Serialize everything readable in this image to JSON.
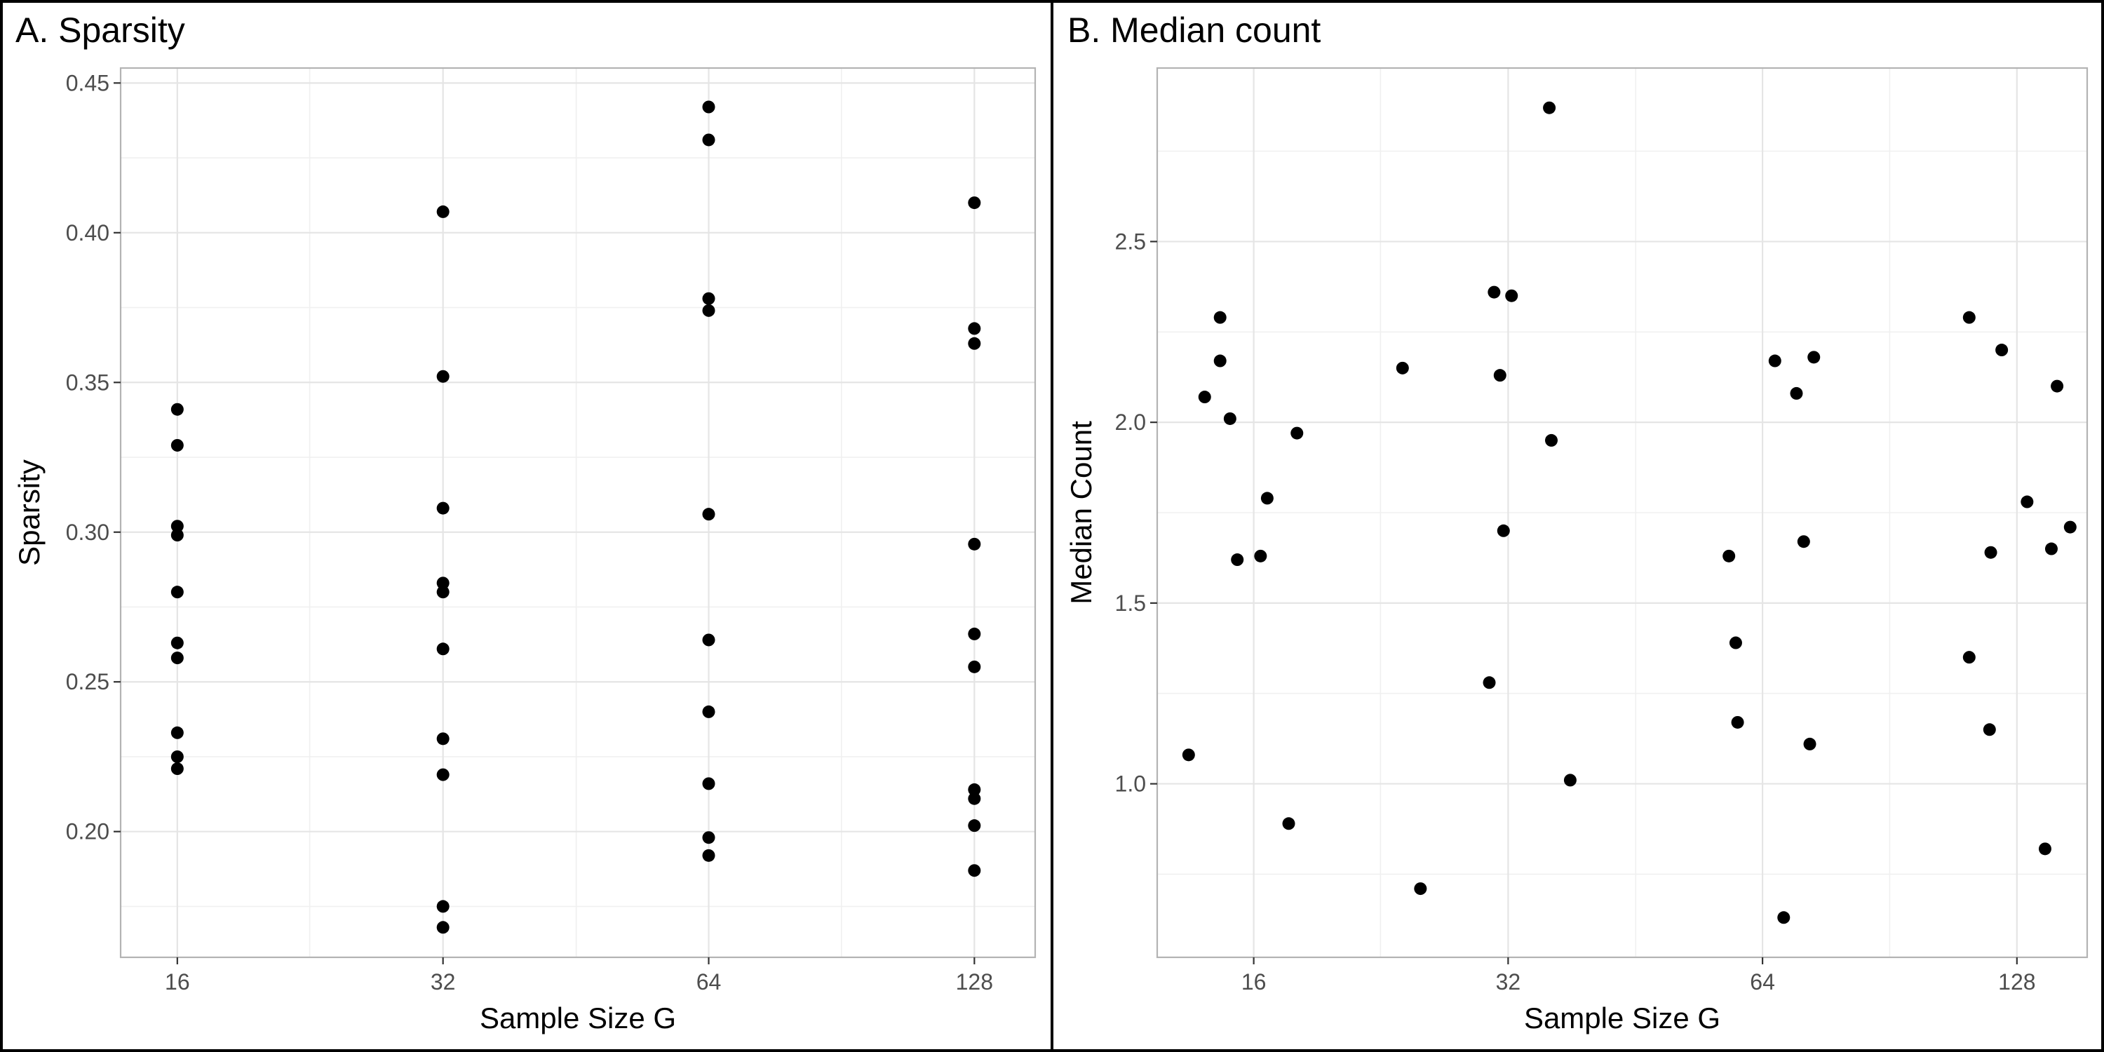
{
  "chart_data": [
    {
      "type": "scatter",
      "title": "A. Sparsity",
      "xlabel": "Sample Size G",
      "ylabel": "Sparsity",
      "xscale": "log2",
      "xlim": [
        13.8,
        150
      ],
      "ylim": [
        0.158,
        0.455
      ],
      "xticks": [
        16,
        32,
        64,
        128
      ],
      "xtick_labels": [
        "16",
        "32",
        "64",
        "128"
      ],
      "xminor": [
        22.6,
        45.3,
        90.5
      ],
      "yticks": [
        0.2,
        0.25,
        0.3,
        0.35,
        0.4,
        0.45
      ],
      "ytick_labels": [
        "0.20",
        "0.25",
        "0.30",
        "0.35",
        "0.40",
        "0.45"
      ],
      "yminor": [
        0.175,
        0.225,
        0.275,
        0.325,
        0.375,
        0.425
      ],
      "grid": true,
      "points": [
        {
          "x": 16,
          "y": 0.341
        },
        {
          "x": 16,
          "y": 0.329
        },
        {
          "x": 16,
          "y": 0.302
        },
        {
          "x": 16,
          "y": 0.299
        },
        {
          "x": 16,
          "y": 0.28
        },
        {
          "x": 16,
          "y": 0.263
        },
        {
          "x": 16,
          "y": 0.258
        },
        {
          "x": 16,
          "y": 0.233
        },
        {
          "x": 16,
          "y": 0.225
        },
        {
          "x": 16,
          "y": 0.221
        },
        {
          "x": 32,
          "y": 0.407
        },
        {
          "x": 32,
          "y": 0.352
        },
        {
          "x": 32,
          "y": 0.308
        },
        {
          "x": 32,
          "y": 0.283
        },
        {
          "x": 32,
          "y": 0.28
        },
        {
          "x": 32,
          "y": 0.261
        },
        {
          "x": 32,
          "y": 0.231
        },
        {
          "x": 32,
          "y": 0.219
        },
        {
          "x": 32,
          "y": 0.175
        },
        {
          "x": 32,
          "y": 0.168
        },
        {
          "x": 64,
          "y": 0.442
        },
        {
          "x": 64,
          "y": 0.431
        },
        {
          "x": 64,
          "y": 0.378
        },
        {
          "x": 64,
          "y": 0.374
        },
        {
          "x": 64,
          "y": 0.306
        },
        {
          "x": 64,
          "y": 0.264
        },
        {
          "x": 64,
          "y": 0.24
        },
        {
          "x": 64,
          "y": 0.216
        },
        {
          "x": 64,
          "y": 0.198
        },
        {
          "x": 64,
          "y": 0.192
        },
        {
          "x": 128,
          "y": 0.41
        },
        {
          "x": 128,
          "y": 0.368
        },
        {
          "x": 128,
          "y": 0.363
        },
        {
          "x": 128,
          "y": 0.296
        },
        {
          "x": 128,
          "y": 0.266
        },
        {
          "x": 128,
          "y": 0.255
        },
        {
          "x": 128,
          "y": 0.214
        },
        {
          "x": 128,
          "y": 0.211
        },
        {
          "x": 128,
          "y": 0.202
        },
        {
          "x": 128,
          "y": 0.187
        }
      ]
    },
    {
      "type": "scatter",
      "title": "B. Median count",
      "xlabel": "Sample Size G",
      "ylabel": "Median Count",
      "xscale": "log2",
      "xlim": [
        12.3,
        155
      ],
      "ylim": [
        0.52,
        2.98
      ],
      "xticks": [
        16,
        32,
        64,
        128
      ],
      "xtick_labels": [
        "16",
        "32",
        "64",
        "128"
      ],
      "xminor": [
        22.6,
        45.3,
        90.5
      ],
      "yticks": [
        1.0,
        1.5,
        2.0,
        2.5
      ],
      "ytick_labels": [
        "1.0",
        "1.5",
        "2.0",
        "2.5"
      ],
      "yminor": [
        0.75,
        1.25,
        1.75,
        2.25,
        2.75
      ],
      "grid": true,
      "points": [
        {
          "x": 13.4,
          "y": 1.08
        },
        {
          "x": 14.0,
          "y": 2.07
        },
        {
          "x": 14.6,
          "y": 2.29
        },
        {
          "x": 14.6,
          "y": 2.17
        },
        {
          "x": 15.0,
          "y": 2.01
        },
        {
          "x": 15.3,
          "y": 1.62
        },
        {
          "x": 16.3,
          "y": 1.63
        },
        {
          "x": 16.6,
          "y": 1.79
        },
        {
          "x": 17.6,
          "y": 0.89
        },
        {
          "x": 18.0,
          "y": 1.97
        },
        {
          "x": 24.0,
          "y": 2.15
        },
        {
          "x": 25.2,
          "y": 0.71
        },
        {
          "x": 30.4,
          "y": 1.28
        },
        {
          "x": 30.8,
          "y": 2.36
        },
        {
          "x": 31.3,
          "y": 2.13
        },
        {
          "x": 31.6,
          "y": 1.7
        },
        {
          "x": 32.3,
          "y": 2.35
        },
        {
          "x": 35.8,
          "y": 2.87
        },
        {
          "x": 36.0,
          "y": 1.95
        },
        {
          "x": 37.9,
          "y": 1.01
        },
        {
          "x": 58.4,
          "y": 1.63
        },
        {
          "x": 59.5,
          "y": 1.39
        },
        {
          "x": 59.8,
          "y": 1.17
        },
        {
          "x": 66.2,
          "y": 2.17
        },
        {
          "x": 67.8,
          "y": 0.63
        },
        {
          "x": 70.2,
          "y": 2.08
        },
        {
          "x": 71.6,
          "y": 1.67
        },
        {
          "x": 72.8,
          "y": 1.11
        },
        {
          "x": 73.6,
          "y": 2.18
        },
        {
          "x": 112.4,
          "y": 2.29
        },
        {
          "x": 112.4,
          "y": 1.35
        },
        {
          "x": 118.8,
          "y": 1.15
        },
        {
          "x": 119.2,
          "y": 1.64
        },
        {
          "x": 122.8,
          "y": 2.2
        },
        {
          "x": 131.6,
          "y": 1.78
        },
        {
          "x": 138.2,
          "y": 0.82
        },
        {
          "x": 140.6,
          "y": 1.65
        },
        {
          "x": 142.8,
          "y": 2.1
        },
        {
          "x": 148.0,
          "y": 1.71
        }
      ]
    }
  ]
}
